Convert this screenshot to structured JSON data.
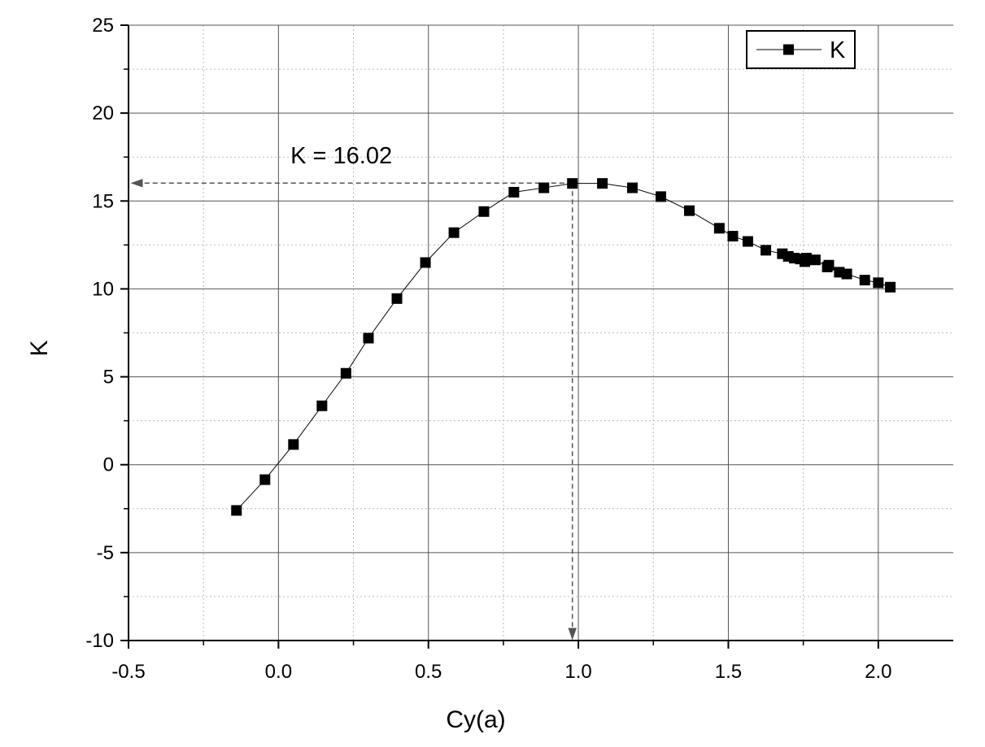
{
  "chart_data": {
    "type": "scatter",
    "title": "",
    "xlabel": "Cy(a)",
    "ylabel": "K",
    "xlim": [
      -0.5,
      2.25
    ],
    "ylim": [
      -10,
      25
    ],
    "x_ticks": [
      "-0.5",
      "0.0",
      "0.5",
      "1.0",
      "1.5",
      "2.0"
    ],
    "y_ticks": [
      "-10",
      "-5",
      "0",
      "5",
      "10",
      "15",
      "20",
      "25"
    ],
    "grid": true,
    "legend_position": "top-right",
    "colors": {
      "series": "#000000",
      "major_grid": "#555555",
      "minor_grid": "#bbbbbb",
      "annotation_arrow": "#555555"
    },
    "series": [
      {
        "name": "K",
        "marker": "square",
        "line": true,
        "x": [
          -0.14,
          -0.045,
          0.05,
          0.145,
          0.225,
          0.3,
          0.395,
          0.49,
          0.585,
          0.685,
          0.785,
          0.885,
          0.98,
          1.08,
          1.18,
          1.275,
          1.37,
          1.47,
          1.515,
          1.565,
          1.625,
          1.68,
          1.7,
          1.72,
          1.74,
          1.755,
          1.76,
          1.79,
          1.83,
          1.835,
          1.87,
          1.895,
          1.955,
          2.0,
          2.04
        ],
        "y": [
          -2.6,
          -0.85,
          1.15,
          3.35,
          5.2,
          7.2,
          9.45,
          11.5,
          13.2,
          14.4,
          15.5,
          15.75,
          16.0,
          16.0,
          15.75,
          15.25,
          14.45,
          13.45,
          13.0,
          12.7,
          12.2,
          12.0,
          11.85,
          11.75,
          11.7,
          11.55,
          11.75,
          11.65,
          11.25,
          11.35,
          10.95,
          10.85,
          10.5,
          10.35,
          10.1
        ]
      }
    ],
    "annotations": [
      {
        "text": "K = 16.02",
        "point": [
          0.98,
          16.02
        ]
      }
    ]
  }
}
